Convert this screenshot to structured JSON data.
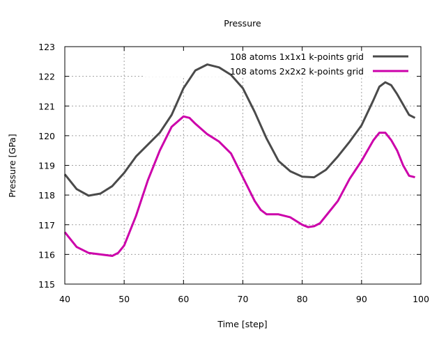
{
  "chart_data": {
    "type": "line",
    "title": "Pressure",
    "xlabel": "Time [step]",
    "ylabel": "Pressure [GPa]",
    "xlim": [
      40,
      100
    ],
    "ylim": [
      115,
      123
    ],
    "xticks": [
      40,
      50,
      60,
      70,
      80,
      90,
      100
    ],
    "yticks": [
      115,
      116,
      117,
      118,
      119,
      120,
      121,
      122,
      123
    ],
    "grid": true,
    "legend_position": "top-right",
    "series": [
      {
        "name": "108 atoms 1x1x1 k-points grid",
        "color": "#4a4a4a",
        "x": [
          40,
          42,
          44,
          46,
          48,
          50,
          52,
          54,
          56,
          58,
          60,
          62,
          64,
          66,
          68,
          70,
          72,
          74,
          76,
          78,
          80,
          82,
          84,
          86,
          88,
          90,
          92,
          93,
          94,
          95,
          96,
          98,
          99
        ],
        "y": [
          118.7,
          118.2,
          117.98,
          118.05,
          118.3,
          118.75,
          119.3,
          119.7,
          120.1,
          120.7,
          121.6,
          122.2,
          122.4,
          122.3,
          122.05,
          121.6,
          120.8,
          119.9,
          119.15,
          118.8,
          118.62,
          118.6,
          118.85,
          119.3,
          119.8,
          120.35,
          121.2,
          121.65,
          121.8,
          121.7,
          121.4,
          120.7,
          120.6
        ]
      },
      {
        "name": "108 atoms 2x2x2 k-points grid",
        "color": "#cc00aa",
        "x": [
          40,
          42,
          44,
          46,
          48,
          49,
          50,
          52,
          54,
          56,
          58,
          60,
          61,
          62,
          64,
          66,
          68,
          70,
          72,
          73,
          74,
          76,
          78,
          80,
          81,
          82,
          83,
          84,
          86,
          88,
          90,
          92,
          93,
          94,
          95,
          96,
          97,
          98,
          99
        ],
        "y": [
          116.75,
          116.25,
          116.05,
          116.0,
          115.95,
          116.05,
          116.3,
          117.3,
          118.5,
          119.5,
          120.3,
          120.65,
          120.6,
          120.4,
          120.05,
          119.8,
          119.4,
          118.6,
          117.8,
          117.5,
          117.35,
          117.35,
          117.25,
          117.0,
          116.92,
          116.95,
          117.05,
          117.3,
          117.8,
          118.55,
          119.15,
          119.85,
          120.1,
          120.1,
          119.85,
          119.5,
          119.0,
          118.65,
          118.6
        ]
      }
    ]
  }
}
